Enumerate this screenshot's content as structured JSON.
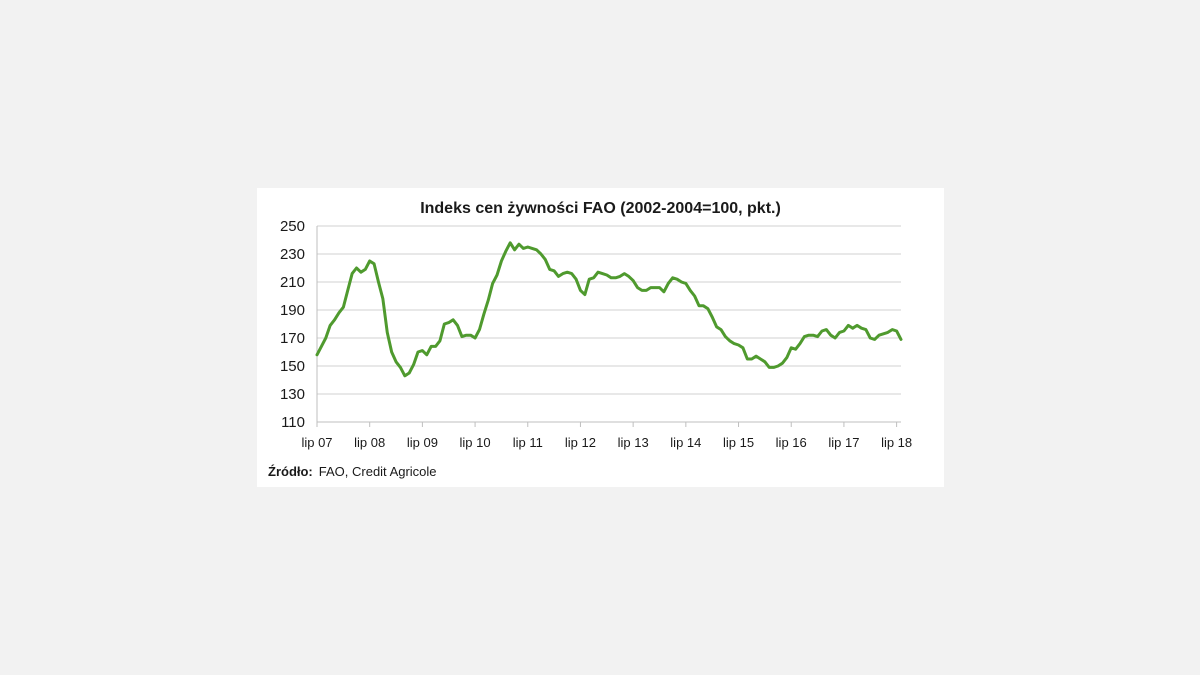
{
  "chart_data": {
    "type": "line",
    "title": "Indeks cen żywności FAO (2002-2004=100, pkt.)",
    "xlabel": "",
    "ylabel": "",
    "ylim": [
      110,
      250
    ],
    "y_ticks": [
      110,
      130,
      150,
      170,
      190,
      210,
      230,
      250
    ],
    "x_tick_labels": [
      "lip 07",
      "lip 08",
      "lip 09",
      "lip 10",
      "lip 11",
      "lip 12",
      "lip 13",
      "lip 14",
      "lip 15",
      "lip 16",
      "lip 17",
      "lip 18"
    ],
    "grid": true,
    "legend": "none",
    "line_color": "#4f9a2e",
    "x_start": "2007-07",
    "x_end": "2018-09",
    "series": [
      {
        "values": [
          158,
          164,
          170,
          179,
          183,
          188,
          192,
          204,
          216,
          220,
          217,
          219,
          225,
          223,
          210,
          198,
          174,
          160,
          153,
          149,
          143,
          145,
          151,
          160,
          161,
          158,
          164,
          164,
          168,
          180,
          181,
          183,
          179,
          171,
          172,
          172,
          170,
          176,
          187,
          197,
          209,
          215,
          225,
          232,
          238,
          233,
          237,
          234,
          235,
          234,
          233,
          230,
          226,
          219,
          218,
          214,
          216,
          217,
          216,
          212,
          204,
          201,
          212,
          213,
          217,
          216,
          215,
          213,
          213,
          214,
          216,
          214,
          211,
          206,
          204,
          204,
          206,
          206,
          206,
          203,
          209,
          213,
          212,
          210,
          209,
          204,
          200,
          193,
          193,
          191,
          185,
          178,
          176,
          171,
          168,
          166,
          165,
          163,
          155,
          155,
          157,
          155,
          153,
          149,
          149,
          150,
          152,
          156,
          163,
          162,
          166,
          171,
          172,
          172,
          171,
          175,
          176,
          172,
          170,
          174,
          175,
          179,
          177,
          179,
          177,
          176,
          170,
          169,
          172,
          173,
          174,
          176,
          175,
          169
        ]
      }
    ]
  },
  "source": {
    "label": "Źródło:",
    "text": "FAO, Credit Agricole"
  }
}
